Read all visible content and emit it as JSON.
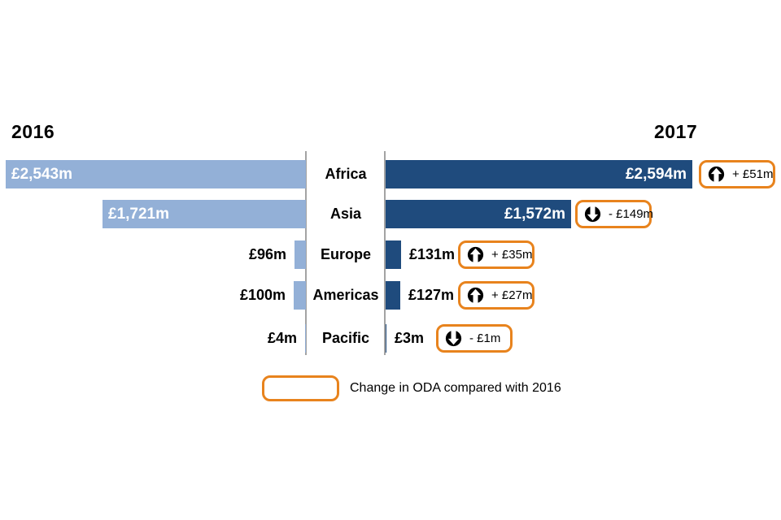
{
  "header": {
    "year_left": "2016",
    "year_right": "2017"
  },
  "legend": {
    "label": "Change in ODA compared with 2016"
  },
  "colors": {
    "bar_2016": "#93b0d7",
    "bar_2017": "#1f4b7d",
    "badge_border": "#e8831d",
    "divider": "#a3a3a3"
  },
  "chart_data": {
    "type": "bar",
    "variant": "butterfly",
    "unit": "£m",
    "title": "",
    "categories": [
      "Africa",
      "Asia",
      "Europe",
      "Americas",
      "Pacific"
    ],
    "series": [
      {
        "name": "2016",
        "values": [
          2543,
          1721,
          96,
          100,
          4
        ]
      },
      {
        "name": "2017",
        "values": [
          2594,
          1572,
          131,
          127,
          3
        ]
      }
    ],
    "legend_note": "Change in ODA compared with 2016",
    "rows": [
      {
        "region": "Africa",
        "value_2016": 2543,
        "value_2017": 2594,
        "left_label": "£2,543m",
        "right_label": "£2,594m",
        "change": 51,
        "change_label": "+ £51m",
        "direction": "up"
      },
      {
        "region": "Asia",
        "value_2016": 1721,
        "value_2017": 1572,
        "left_label": "£1,721m",
        "right_label": "£1,572m",
        "change": -149,
        "change_label": "- £149m",
        "direction": "down"
      },
      {
        "region": "Europe",
        "value_2016": 96,
        "value_2017": 131,
        "left_label": "£96m",
        "right_label": "£131m",
        "change": 35,
        "change_label": "+ £35m",
        "direction": "up"
      },
      {
        "region": "Americas",
        "value_2016": 100,
        "value_2017": 127,
        "left_label": "£100m",
        "right_label": "£127m",
        "change": 27,
        "change_label": "+ £27m",
        "direction": "up"
      },
      {
        "region": "Pacific",
        "value_2016": 4,
        "value_2017": 3,
        "left_label": "£4m",
        "right_label": "£3m",
        "change": -1,
        "change_label": "- £1m",
        "direction": "down"
      }
    ]
  }
}
